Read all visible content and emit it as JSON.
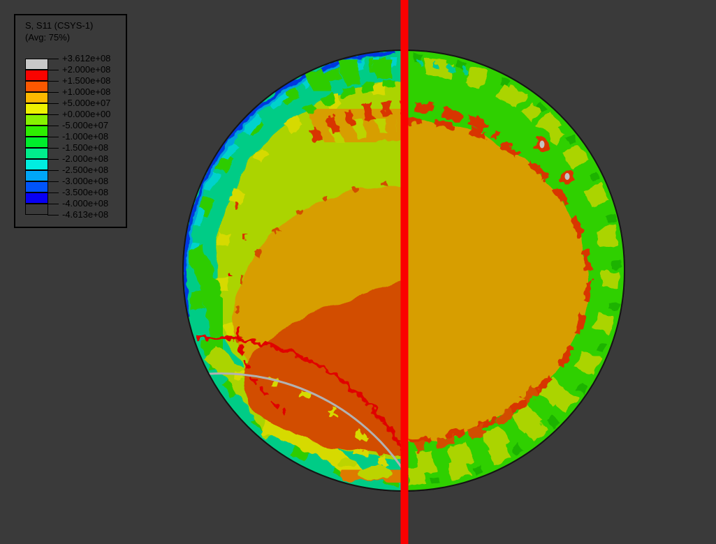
{
  "viewport": {
    "background": "#3a3a3a",
    "symmetry_line_color": "#fb0000"
  },
  "legend": {
    "title": "S, S11 (CSYS-1)",
    "subtitle": "(Avg: 75%)",
    "tick_labels": [
      "+3.612e+08",
      "+2.000e+08",
      "+1.500e+08",
      "+1.000e+08",
      "+5.000e+07",
      "+0.000e+00",
      "-5.000e+07",
      "-1.000e+08",
      "-1.500e+08",
      "-2.000e+08",
      "-2.500e+08",
      "-3.000e+08",
      "-3.500e+08",
      "-4.000e+08",
      "-4.613e+08"
    ],
    "band_colors": [
      "#c8c8c8",
      "#fa0300",
      "#fc5800",
      "#fcb800",
      "#eef200",
      "#86f200",
      "#2eee00",
      "#00ee2c",
      "#00ee8c",
      "#00eee0",
      "#00a6f8",
      "#0054fa",
      "#0800f4",
      "#3a3a3a"
    ]
  },
  "palette": {
    "background": "#3a3a3a",
    "symmetry_line": "#fb0000",
    "outline": "#141414",
    "max_gray": "#c4c4c4",
    "rim_gray": "#b2b2b2",
    "red": "#e00000",
    "red_orange": "#d83400",
    "orange_red": "#d24e00",
    "orange": "#dd7a00",
    "amber": "#d79e00",
    "yellow": "#d6da00",
    "chartreuse": "#abd400",
    "yellow_green": "#bcd400",
    "green": "#2ecc00",
    "green_bright": "#2fd000",
    "green_dark": "#1db300",
    "spring": "#00cc86",
    "teal_speck": "#00cc90",
    "cyan": "#00d2cc",
    "sky": "#00a0e0",
    "blue": "#0038e0"
  }
}
